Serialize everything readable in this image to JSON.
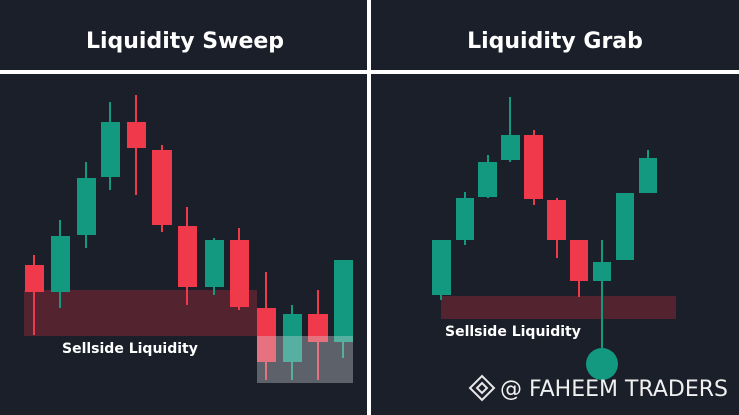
{
  "panels": [
    {
      "title": "Liquidity Sweep",
      "zone_label": "Sellside Liquidity"
    },
    {
      "title": "Liquidity Grab",
      "zone_label": "Sellside Liquidity"
    }
  ],
  "watermark": "@ FAHEEM TRADERS"
}
